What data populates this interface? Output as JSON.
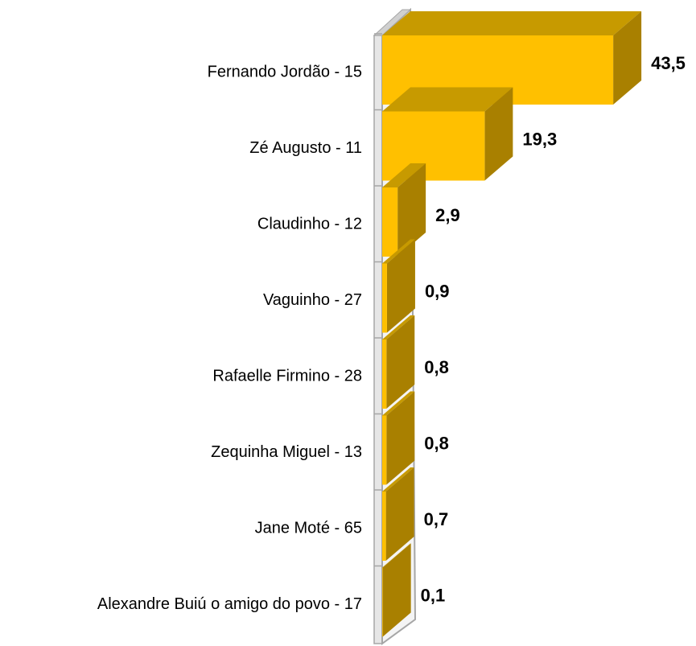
{
  "chart_data": {
    "type": "bar3d_horizontal",
    "categories": [
      "Fernando Jordão - 15",
      "Zé Augusto - 11",
      "Claudinho - 12",
      "Vaguinho - 27",
      "Rafaelle Firmino - 28",
      "Zequinha Miguel - 13",
      "Jane Moté - 65",
      "Alexandre Buiú o amigo do povo - 17"
    ],
    "values": [
      43.5,
      19.3,
      2.9,
      0.9,
      0.8,
      0.8,
      0.7,
      0.1
    ],
    "value_labels": [
      "43,5",
      "19,3",
      "2,9",
      "0,9",
      "0,8",
      "0,8",
      "0,7",
      "0,1"
    ],
    "color": "#FFC000",
    "xlim": [
      0,
      45
    ]
  }
}
